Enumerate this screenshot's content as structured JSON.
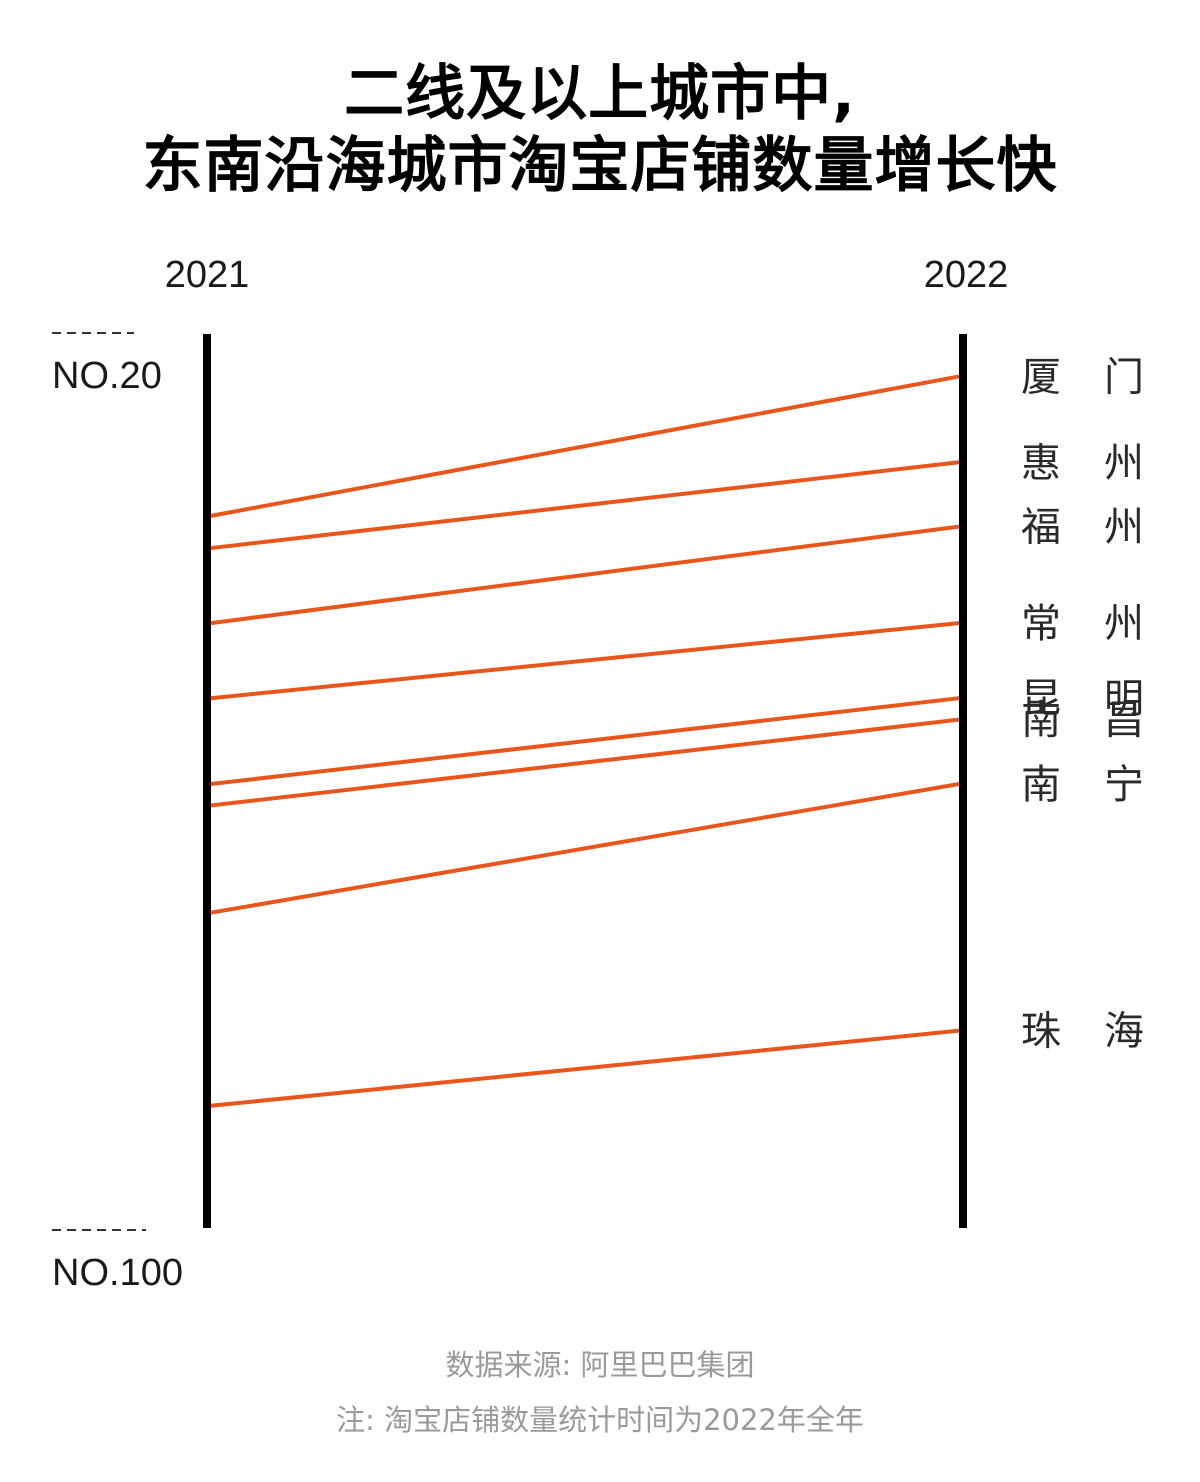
{
  "title": {
    "line1": "二线及以上城市中,",
    "line2": "东南沿海城市淘宝店铺数量增长快"
  },
  "chart_data": {
    "type": "slope",
    "x": [
      "2021",
      "2022"
    ],
    "rank_top_label": "NO.20",
    "rank_bottom_label": "NO.100",
    "y_range": [
      20,
      100
    ],
    "y_inverted": true,
    "line_color": "#e8561b",
    "axis_color": "#000000",
    "series": [
      {
        "name": "厦门",
        "label_chars": [
          "厦",
          "门"
        ],
        "rank_2021": 35,
        "rank_2022": 22
      },
      {
        "name": "惠州",
        "label_chars": [
          "惠",
          "州"
        ],
        "rank_2021": 38,
        "rank_2022": 30
      },
      {
        "name": "福州",
        "label_chars": [
          "福",
          "州"
        ],
        "rank_2021": 45,
        "rank_2022": 36
      },
      {
        "name": "常州",
        "label_chars": [
          "常",
          "州"
        ],
        "rank_2021": 52,
        "rank_2022": 45
      },
      {
        "name": "昆明",
        "label_chars": [
          "昆",
          "明"
        ],
        "rank_2021": 60,
        "rank_2022": 52
      },
      {
        "name": "南昌",
        "label_chars": [
          "南",
          "昌"
        ],
        "rank_2021": 62,
        "rank_2022": 54
      },
      {
        "name": "南宁",
        "label_chars": [
          "南",
          "宁"
        ],
        "rank_2021": 72,
        "rank_2022": 60
      },
      {
        "name": "珠海",
        "label_chars": [
          "珠",
          "海"
        ],
        "rank_2021": 90,
        "rank_2022": 83
      }
    ]
  },
  "footer": {
    "source": "数据来源: 阿里巴巴集团",
    "note": "注: 淘宝店铺数量统计时间为2022年全年"
  }
}
